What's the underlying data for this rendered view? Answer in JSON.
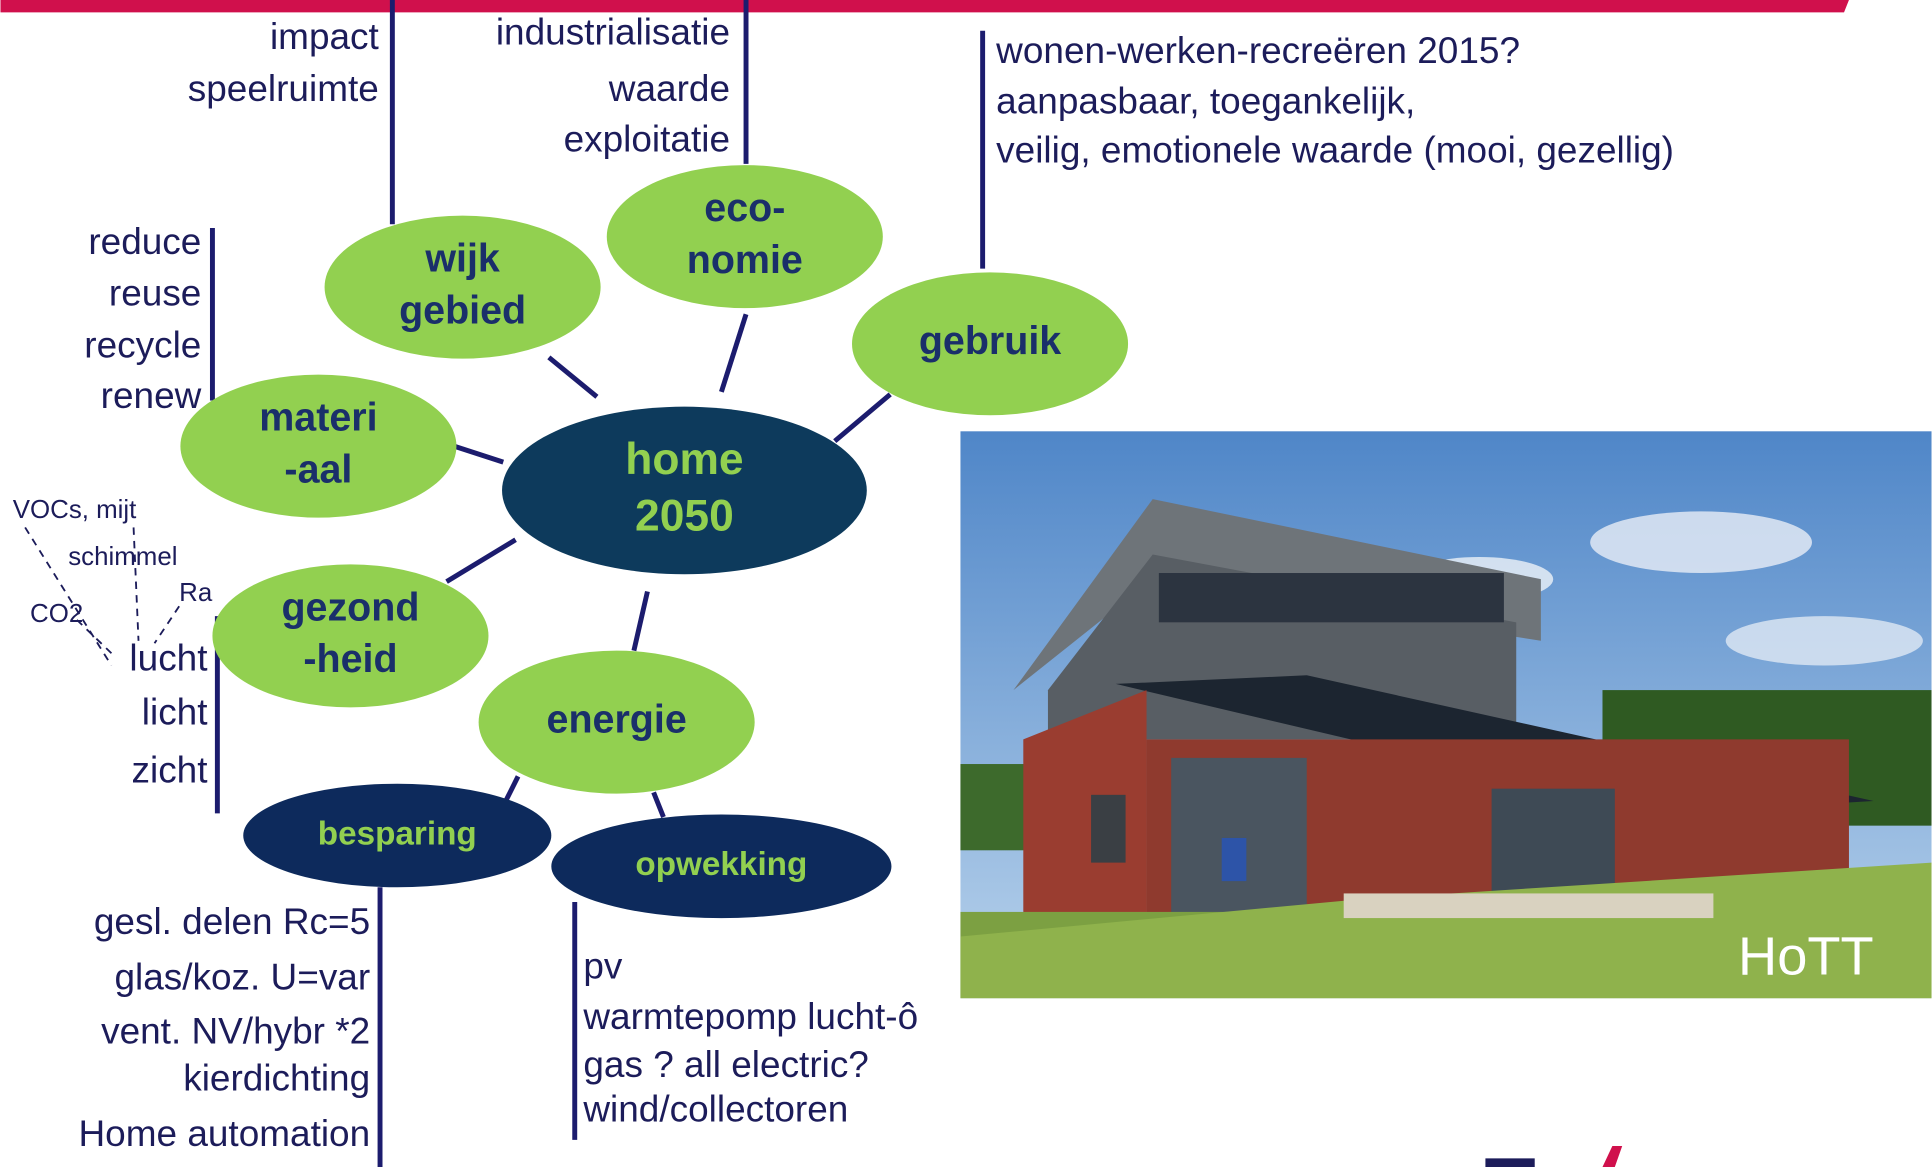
{
  "center": {
    "lines": [
      "home",
      "2050"
    ]
  },
  "nodes": [
    {
      "lines": [
        "wijk",
        "gebied"
      ]
    },
    {
      "lines": [
        "eco-",
        "nomie"
      ]
    },
    {
      "lines": [
        "gebruik"
      ]
    },
    {
      "lines": [
        "materi",
        "-aal"
      ]
    },
    {
      "lines": [
        "gezond",
        "-heid"
      ]
    },
    {
      "lines": [
        "energie"
      ]
    },
    {
      "lines": [
        "besparing"
      ]
    },
    {
      "lines": [
        "opwekking"
      ]
    }
  ],
  "lists": [
    {
      "items": [
        "impact",
        "speelruimte"
      ]
    },
    {
      "items": [
        "industrialisatie",
        "waarde",
        "exploitatie"
      ]
    },
    {
      "items": [
        "wonen-werken-recreëren 2015?",
        "aanpasbaar, toegankelijk,",
        "veilig, emotionele waarde (mooi, gezellig)"
      ]
    },
    {
      "items": [
        "reduce",
        "reuse",
        "recycle",
        "renew"
      ]
    },
    {
      "items": [
        "lucht",
        "licht",
        "zicht"
      ]
    },
    {
      "items": [
        "gesl. delen Rc=5",
        "glas/koz. U=var",
        "vent. NV/hybr *2",
        "kierdichting",
        "Home automation"
      ]
    },
    {
      "items": [
        "pv",
        "warmtepomp lucht-ô",
        "gas ? all electric?",
        "wind/collectoren"
      ]
    }
  ],
  "lucht_factors": [
    "VOCs, mijt",
    "schimmel",
    "Ra",
    "CO2"
  ],
  "photo": {
    "caption": "HoTT"
  }
}
